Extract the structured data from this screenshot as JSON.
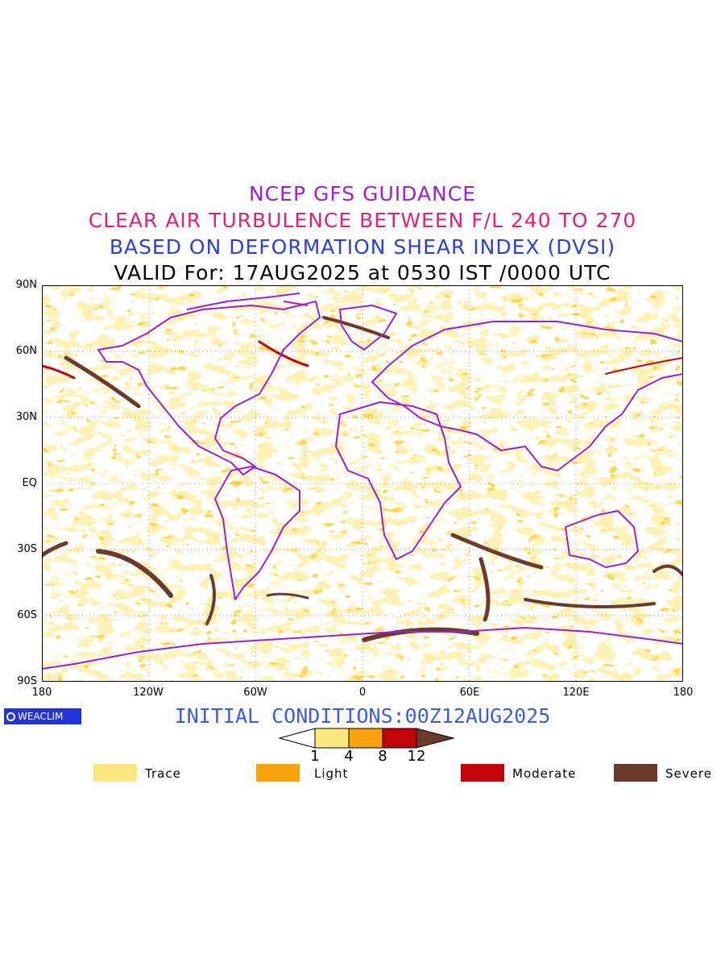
{
  "header": {
    "line1": "NCEP GFS GUIDANCE",
    "line2": "CLEAR AIR TURBULENCE BETWEEN F/L 240 TO 270",
    "line3": "BASED ON DEFORMATION SHEAR INDEX (DVSI)",
    "line4": "VALID For: 17AUG2025 at 0530 IST /0000 UTC"
  },
  "axes": {
    "y_ticks": [
      "90N",
      "60N",
      "30N",
      "EQ",
      "30S",
      "60S",
      "90S"
    ],
    "x_ticks": [
      "180",
      "120W",
      "60W",
      "0",
      "60E",
      "120E",
      "180"
    ],
    "lat_range": [
      -90,
      90
    ],
    "lon_range": [
      -180,
      180
    ]
  },
  "logo": {
    "text": "WEACLIM"
  },
  "footer": {
    "initial_conditions": "INITIAL CONDITIONS:00Z12AUG2025"
  },
  "colorbar": {
    "levels": [
      "1",
      "4",
      "8",
      "12"
    ],
    "colors": [
      "#ffffff",
      "#fde77e",
      "#f9a10a",
      "#c4040b",
      "#6b3a2c"
    ]
  },
  "legend": [
    {
      "label": "Trace",
      "color": "#fde77e"
    },
    {
      "label": "Light",
      "color": "#f9a10a"
    },
    {
      "label": "Moderate",
      "color": "#c4040b"
    },
    {
      "label": "Severe",
      "color": "#6b3a2c"
    }
  ],
  "colors": {
    "coastline": "#9b1fd6",
    "severe_band": "#6b3a2c"
  }
}
